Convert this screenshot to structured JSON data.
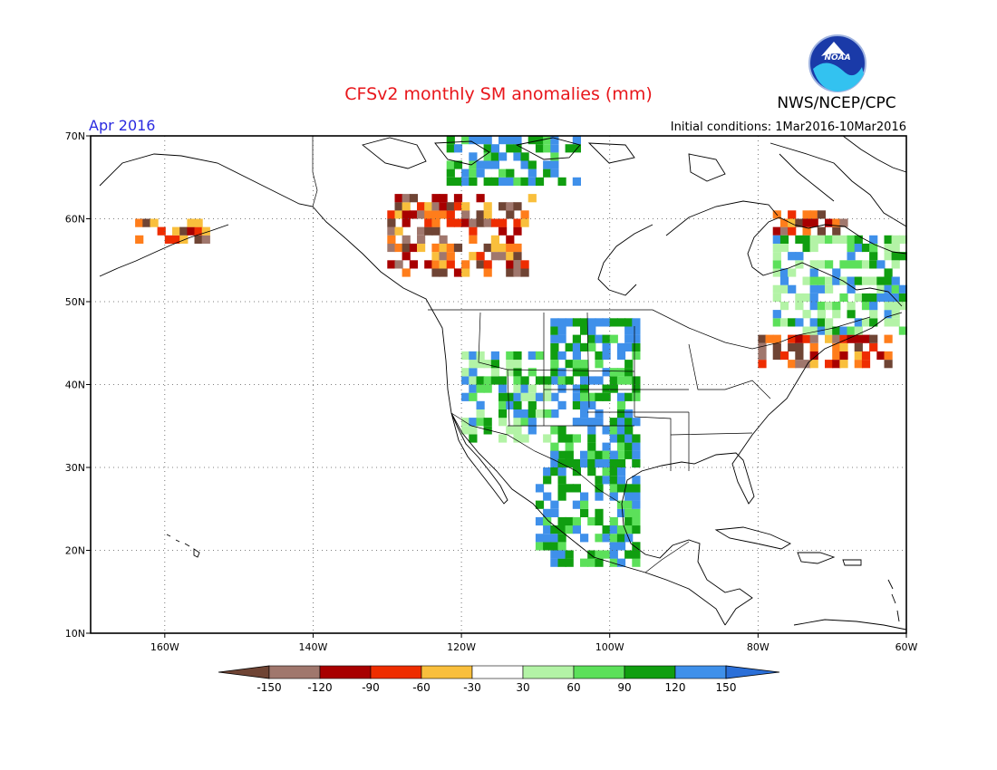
{
  "header": {
    "title": "CFSv2 monthly SM anomalies (mm)",
    "month": "Apr 2016",
    "organization": "NWS/NCEP/CPC",
    "initial_conditions": "Initial conditions: 1Mar2016-10Mar2016",
    "logo_text": "NOAA"
  },
  "map": {
    "lon_range": [
      -170,
      -60
    ],
    "lat_range": [
      10,
      70
    ],
    "lat_ticks": [
      {
        "value": 70,
        "label": "70N"
      },
      {
        "value": 60,
        "label": "60N"
      },
      {
        "value": 50,
        "label": "50N"
      },
      {
        "value": 40,
        "label": "40N"
      },
      {
        "value": 30,
        "label": "30N"
      },
      {
        "value": 20,
        "label": "20N"
      },
      {
        "value": 10,
        "label": "10N"
      }
    ],
    "lon_ticks": [
      {
        "value": -160,
        "label": "160W"
      },
      {
        "value": -140,
        "label": "140W"
      },
      {
        "value": -120,
        "label": "120W"
      },
      {
        "value": -100,
        "label": "100W"
      },
      {
        "value": -80,
        "label": "80W"
      },
      {
        "value": -60,
        "label": "60W"
      }
    ],
    "gridlines": true,
    "regions": [
      {
        "name": "alaska-southwest-dry",
        "lon": [
          -164,
          -154
        ],
        "lat": [
          57,
          60
        ],
        "category": "dry"
      },
      {
        "name": "western-canada-dry",
        "lon": [
          -130,
          -110
        ],
        "lat": [
          53,
          63
        ],
        "category": "dry"
      },
      {
        "name": "hudson-bay-north-wet",
        "lon": [
          -122,
          -104
        ],
        "lat": [
          64,
          70
        ],
        "category": "wet"
      },
      {
        "name": "great-plains-wet",
        "lon": [
          -108,
          -96
        ],
        "lat": [
          30,
          48
        ],
        "category": "wet"
      },
      {
        "name": "southwest-us-wet",
        "lon": [
          -120,
          -108
        ],
        "lat": [
          33,
          44
        ],
        "category": "moist"
      },
      {
        "name": "mexico-wet",
        "lon": [
          -110,
          -96
        ],
        "lat": [
          18,
          32
        ],
        "category": "wet"
      },
      {
        "name": "labrador-dry",
        "lon": [
          -78,
          -68
        ],
        "lat": [
          58,
          61
        ],
        "category": "dry"
      },
      {
        "name": "northeast-us-dry",
        "lon": [
          -80,
          -62
        ],
        "lat": [
          42,
          46
        ],
        "category": "dry"
      },
      {
        "name": "quebec-moist",
        "lon": [
          -78,
          -60
        ],
        "lat": [
          46,
          58
        ],
        "category": "moist"
      }
    ]
  },
  "colorbar": {
    "colors": [
      "#6f4434",
      "#a0776d",
      "#a80000",
      "#ee2d00",
      "#ff7d1b",
      "#f9bf3c",
      "#ffffff",
      "#b3f3a6",
      "#5ce05a",
      "#109e10",
      "#3f90ea",
      "#2b6fd8"
    ],
    "bins": [
      {
        "color": "#a0776d"
      },
      {
        "color": "#a80000"
      },
      {
        "color": "#ee2d00"
      },
      {
        "color": "#f9bf3c"
      },
      {
        "color": "#ffffff"
      },
      {
        "color": "#b3f3a6"
      },
      {
        "color": "#5ce05a"
      },
      {
        "color": "#109e10"
      },
      {
        "color": "#3f90ea"
      }
    ],
    "low_arrow_color": "#6f4434",
    "high_arrow_color": "#2b6fd8",
    "tick_labels": [
      "-150",
      "-120",
      "-90",
      "-60",
      "-30",
      "30",
      "60",
      "90",
      "120",
      "150"
    ]
  }
}
